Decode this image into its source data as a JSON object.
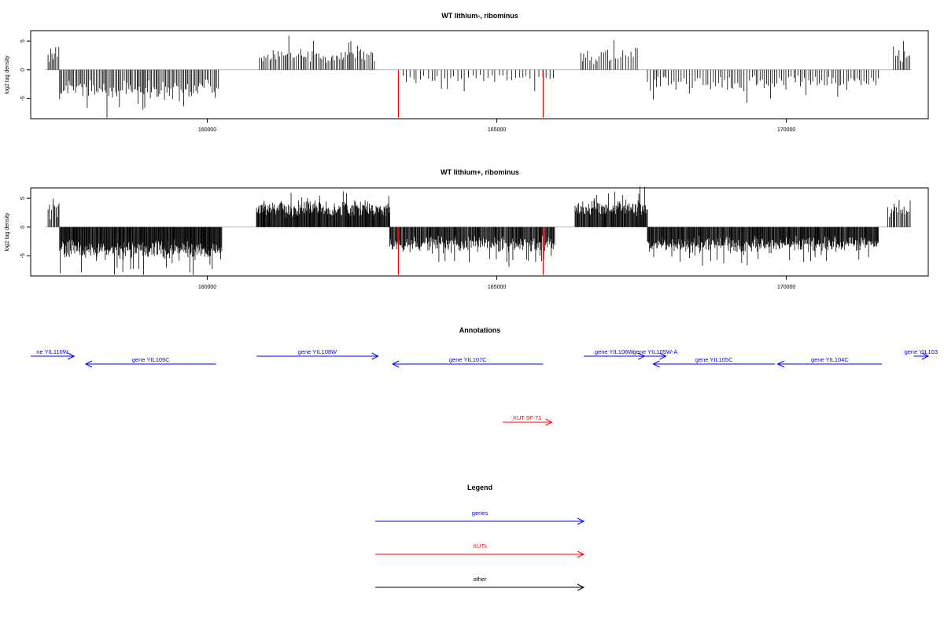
{
  "chart_data": {
    "type": "bar",
    "x_range": [
      156950,
      172450
    ],
    "x_ticks": [
      160000,
      165000,
      170000
    ],
    "panels": [
      {
        "title": "WT lithium-, ribominus",
        "ylabel": "log2 tag density",
        "ylim": [
          -8.5,
          6.8
        ],
        "y_ticks": [
          -5,
          0,
          5
        ],
        "segments": [
          {
            "start": 157250,
            "end": 157450,
            "sign": 1,
            "mean": 2.7,
            "spread": 1.4,
            "step": 28
          },
          {
            "start": 157450,
            "end": 160200,
            "sign": -1,
            "mean": 3.5,
            "spread": 2.0,
            "step": 24
          },
          {
            "start": 160900,
            "end": 162900,
            "sign": 1,
            "mean": 2.4,
            "spread": 1.5,
            "step": 28
          },
          {
            "start": 163300,
            "end": 166000,
            "sign": -1,
            "mean": 1.6,
            "spread": 1.0,
            "step": 60
          },
          {
            "start": 166450,
            "end": 167450,
            "sign": 1,
            "mean": 2.3,
            "spread": 1.6,
            "step": 35
          },
          {
            "start": 167600,
            "end": 171600,
            "sign": -1,
            "mean": 2.3,
            "spread": 1.5,
            "step": 38
          },
          {
            "start": 171850,
            "end": 172150,
            "sign": 1,
            "mean": 2.5,
            "spread": 1.3,
            "step": 26
          }
        ],
        "highlights": [
          {
            "x": 163300,
            "y": -8.3
          },
          {
            "x": 165800,
            "y": -8.3
          }
        ]
      },
      {
        "title": "WT lithium+, ribominus",
        "ylabel": "log2 tag density",
        "ylim": [
          -8.5,
          6.8
        ],
        "y_ticks": [
          -5,
          0,
          5
        ],
        "segments": [
          {
            "start": 157250,
            "end": 157450,
            "sign": 1,
            "mean": 2.8,
            "spread": 1.6,
            "step": 18
          },
          {
            "start": 157450,
            "end": 160250,
            "sign": -1,
            "mean": 4.0,
            "spread": 2.0,
            "step": 10
          },
          {
            "start": 160850,
            "end": 163150,
            "sign": 1,
            "mean": 3.2,
            "spread": 1.6,
            "step": 10
          },
          {
            "start": 163150,
            "end": 166000,
            "sign": -1,
            "mean": 3.0,
            "spread": 1.7,
            "step": 12
          },
          {
            "start": 166350,
            "end": 167600,
            "sign": 1,
            "mean": 3.3,
            "spread": 1.7,
            "step": 11
          },
          {
            "start": 167600,
            "end": 171600,
            "sign": -1,
            "mean": 3.0,
            "spread": 1.6,
            "step": 11
          },
          {
            "start": 171750,
            "end": 172150,
            "sign": 1,
            "mean": 2.6,
            "spread": 1.5,
            "step": 22
          }
        ],
        "highlights": [
          {
            "x": 163300,
            "y": -8.3
          },
          {
            "x": 165800,
            "y": -8.3
          }
        ]
      }
    ],
    "annotations_title": "Annotations",
    "annotations": [
      {
        "label": "ne YIL110W",
        "start": 156950,
        "end": 157700,
        "strand": "+",
        "row": 0,
        "color": "#0000ff"
      },
      {
        "label": "gene YIL109C",
        "start": 157900,
        "end": 160150,
        "strand": "-",
        "row": 1,
        "color": "#0000ff"
      },
      {
        "label": "gene YIL108W",
        "start": 160850,
        "end": 162950,
        "strand": "+",
        "row": 0,
        "color": "#0000ff"
      },
      {
        "label": "gene YIL107C",
        "start": 163200,
        "end": 165800,
        "strand": "-",
        "row": 1,
        "color": "#0000ff"
      },
      {
        "label": "gene YIL106W",
        "start": 166500,
        "end": 167550,
        "strand": "+",
        "row": 0,
        "color": "#0000ff"
      },
      {
        "label": "gene YIL105W-A",
        "start": 167550,
        "end": 167920,
        "strand": "+",
        "row": 0,
        "color": "#0000ff"
      },
      {
        "label": "gene YIL105C",
        "start": 167700,
        "end": 169800,
        "strand": "-",
        "row": 1,
        "color": "#0000ff"
      },
      {
        "label": "gene YIL104C",
        "start": 169850,
        "end": 171650,
        "strand": "-",
        "row": 1,
        "color": "#0000ff"
      },
      {
        "label": "gene YIL103",
        "start": 172200,
        "end": 172450,
        "strand": "+",
        "row": 0,
        "color": "#0000ff"
      },
      {
        "label": "XUT 9F-71",
        "start": 165100,
        "end": 165950,
        "strand": "+",
        "row": 2,
        "color": "#ff0000"
      }
    ],
    "legend_title": "Legend",
    "legend": [
      {
        "label": "genes",
        "color": "#0000ff"
      },
      {
        "label": "XUTs",
        "color": "#ff0000"
      },
      {
        "label": "other",
        "color": "#000000"
      }
    ],
    "colors": {
      "bars": "#000000",
      "highlight": "#ff0000",
      "baseline": "#a0a0a0"
    }
  }
}
